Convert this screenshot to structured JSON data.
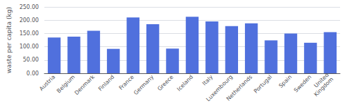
{
  "chart_data": {
    "type": "bar",
    "ylabel": "waste per capita (kg)",
    "categories": [
      "Austria",
      "Belgium",
      "Denmark",
      "Finland",
      "France",
      "Germany",
      "Greece",
      "Iceland",
      "Italy",
      "Luxembourg",
      "Netherlands",
      "Portugal",
      "Spain",
      "Sweden",
      "United\nKingdom"
    ],
    "values": [
      135,
      138,
      160,
      92,
      210,
      185,
      93,
      213,
      195,
      178,
      188,
      124,
      150,
      115,
      155
    ],
    "ylim": [
      0,
      250
    ],
    "yticks": [
      {
        "value": 0,
        "label": "0.00"
      },
      {
        "value": 50,
        "label": "50.00"
      },
      {
        "value": 100,
        "label": "100.00"
      },
      {
        "value": 150,
        "label": "150.00"
      },
      {
        "value": 200,
        "label": "200.00"
      },
      {
        "value": 250,
        "label": "250.00"
      }
    ],
    "grid": true
  }
}
